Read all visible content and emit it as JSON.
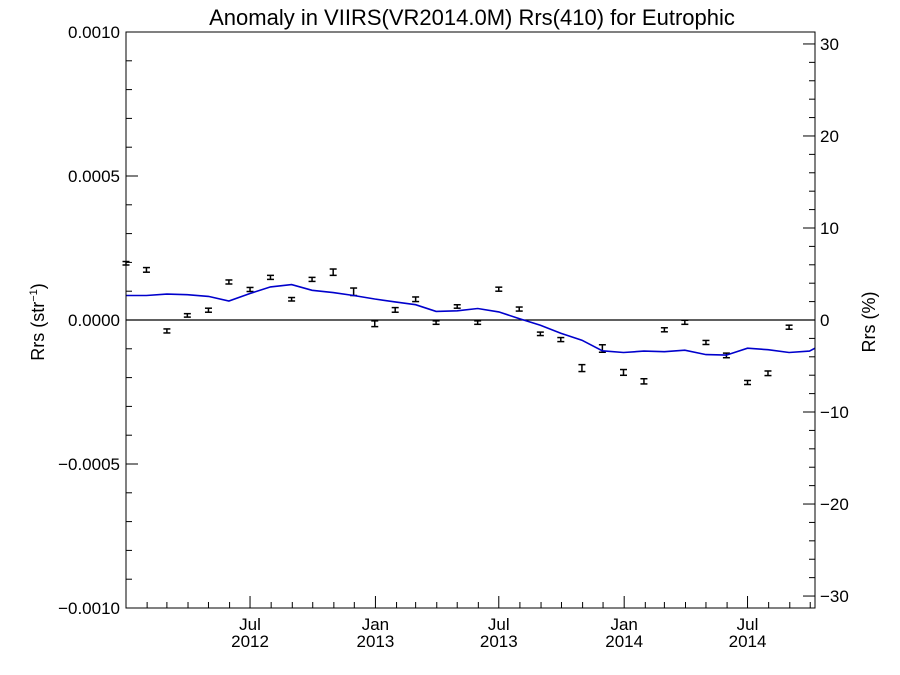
{
  "chart_data": {
    "type": "line",
    "title": "Anomaly in VIIRS(VR2014.0M) Rrs(410) for Eutrophic",
    "ylabel_base": "Rrs (str",
    "ylabel_sup": "−1",
    "ylabel_close": ")",
    "ylabel_right": "Rrs (%)",
    "ylim": [
      -0.001,
      0.001
    ],
    "ylim_right": [
      -31.3,
      31.3
    ],
    "xlim": [
      "2012-01-01",
      "2014-10-08"
    ],
    "zero_line": true,
    "left_ticks": [
      {
        "value": 0.001,
        "label": "0.0010"
      },
      {
        "value": 0.0005,
        "label": "0.0005"
      },
      {
        "value": 0.0,
        "label": "0.0000"
      },
      {
        "value": -0.0005,
        "label": "−0.0005"
      },
      {
        "value": -0.001,
        "label": "−0.0010"
      }
    ],
    "right_ticks": [
      {
        "value": 30,
        "label": "30"
      },
      {
        "value": 20,
        "label": "20"
      },
      {
        "value": 10,
        "label": "10"
      },
      {
        "value": 0,
        "label": "0"
      },
      {
        "value": -10,
        "label": "−10"
      },
      {
        "value": -20,
        "label": "−20"
      },
      {
        "value": -30,
        "label": "−30"
      }
    ],
    "x_ticks": [
      {
        "date": "2012-07-01",
        "month": "Jul",
        "year": "2012"
      },
      {
        "date": "2013-01-01",
        "month": "Jan",
        "year": "2013"
      },
      {
        "date": "2013-07-01",
        "month": "Jul",
        "year": "2013"
      },
      {
        "date": "2014-01-01",
        "month": "Jan",
        "year": "2014"
      },
      {
        "date": "2014-07-01",
        "month": "Jul",
        "year": "2014"
      }
    ],
    "series": [
      {
        "kind": "errorbar",
        "color": "#000000",
        "points": [
          {
            "x": "2012-01-01",
            "y": 0.000197,
            "err": 6e-06
          },
          {
            "x": "2012-01-31",
            "y": 0.000174,
            "err": 8e-06
          },
          {
            "x": "2012-03-01",
            "y": -3.8e-05,
            "err": 7e-06
          },
          {
            "x": "2012-03-31",
            "y": 1.6e-05,
            "err": 6e-06
          },
          {
            "x": "2012-05-01",
            "y": 3.4e-05,
            "err": 7e-06
          },
          {
            "x": "2012-05-31",
            "y": 0.000132,
            "err": 7e-06
          },
          {
            "x": "2012-07-01",
            "y": 0.000106,
            "err": 7e-06
          },
          {
            "x": "2012-07-31",
            "y": 0.000148,
            "err": 7e-06
          },
          {
            "x": "2012-08-31",
            "y": 7.2e-05,
            "err": 6e-06
          },
          {
            "x": "2012-09-30",
            "y": 0.000141,
            "err": 7e-06
          },
          {
            "x": "2012-10-31",
            "y": 0.000166,
            "err": 1.1e-05
          },
          {
            "x": "2012-11-30",
            "y": 9.8e-05,
            "err": 1.3e-05
          },
          {
            "x": "2012-12-31",
            "y": -1.3e-05,
            "err": 1e-05
          },
          {
            "x": "2013-01-30",
            "y": 3.5e-05,
            "err": 8e-06
          },
          {
            "x": "2013-03-01",
            "y": 7.2e-05,
            "err": 8e-06
          },
          {
            "x": "2013-03-31",
            "y": -9e-06,
            "err": 6e-06
          },
          {
            "x": "2013-05-01",
            "y": 4.7e-05,
            "err": 6e-06
          },
          {
            "x": "2013-05-31",
            "y": -9e-06,
            "err": 6e-06
          },
          {
            "x": "2013-07-01",
            "y": 0.000107,
            "err": 7e-06
          },
          {
            "x": "2013-07-31",
            "y": 3.8e-05,
            "err": 7e-06
          },
          {
            "x": "2013-08-31",
            "y": -4.8e-05,
            "err": 6e-06
          },
          {
            "x": "2013-09-30",
            "y": -6.8e-05,
            "err": 7e-06
          },
          {
            "x": "2013-10-31",
            "y": -0.000167,
            "err": 1.2e-05
          },
          {
            "x": "2013-11-30",
            "y": -9.9e-05,
            "err": 1.3e-05
          },
          {
            "x": "2013-12-31",
            "y": -0.000182,
            "err": 1e-05
          },
          {
            "x": "2014-01-30",
            "y": -0.000213,
            "err": 9e-06
          },
          {
            "x": "2014-03-01",
            "y": -3.4e-05,
            "err": 7e-06
          },
          {
            "x": "2014-03-31",
            "y": -8e-06,
            "err": 7e-06
          },
          {
            "x": "2014-05-01",
            "y": -7.8e-05,
            "err": 7e-06
          },
          {
            "x": "2014-05-31",
            "y": -0.000123,
            "err": 8e-06
          },
          {
            "x": "2014-07-01",
            "y": -0.000217,
            "err": 7e-06
          },
          {
            "x": "2014-07-31",
            "y": -0.000185,
            "err": 8e-06
          },
          {
            "x": "2014-08-31",
            "y": -2.5e-05,
            "err": 7e-06
          }
        ]
      },
      {
        "kind": "line",
        "color": "#0000cc",
        "points": [
          {
            "x": "2012-01-01",
            "y": 8.5e-05
          },
          {
            "x": "2012-01-31",
            "y": 8.5e-05
          },
          {
            "x": "2012-03-01",
            "y": 9e-05
          },
          {
            "x": "2012-03-31",
            "y": 8.8e-05
          },
          {
            "x": "2012-05-01",
            "y": 8.2e-05
          },
          {
            "x": "2012-05-31",
            "y": 6.6e-05
          },
          {
            "x": "2012-07-01",
            "y": 9.2e-05
          },
          {
            "x": "2012-07-31",
            "y": 0.000115
          },
          {
            "x": "2012-08-31",
            "y": 0.000123
          },
          {
            "x": "2012-09-30",
            "y": 0.000103
          },
          {
            "x": "2012-10-31",
            "y": 9.5e-05
          },
          {
            "x": "2012-11-30",
            "y": 8.5e-05
          },
          {
            "x": "2012-12-31",
            "y": 7.3e-05
          },
          {
            "x": "2013-01-30",
            "y": 6.3e-05
          },
          {
            "x": "2013-03-01",
            "y": 5.3e-05
          },
          {
            "x": "2013-03-31",
            "y": 3e-05
          },
          {
            "x": "2013-05-01",
            "y": 3.2e-05
          },
          {
            "x": "2013-05-31",
            "y": 4e-05
          },
          {
            "x": "2013-07-01",
            "y": 2.8e-05
          },
          {
            "x": "2013-07-31",
            "y": 5e-06
          },
          {
            "x": "2013-08-31",
            "y": -1.8e-05
          },
          {
            "x": "2013-09-30",
            "y": -4.6e-05
          },
          {
            "x": "2013-10-31",
            "y": -7e-05
          },
          {
            "x": "2013-11-30",
            "y": -0.000107
          },
          {
            "x": "2013-12-31",
            "y": -0.000113
          },
          {
            "x": "2014-01-30",
            "y": -0.000108
          },
          {
            "x": "2014-03-01",
            "y": -0.00011
          },
          {
            "x": "2014-03-31",
            "y": -0.000105
          },
          {
            "x": "2014-05-01",
            "y": -0.00012
          },
          {
            "x": "2014-05-31",
            "y": -0.000122
          },
          {
            "x": "2014-07-01",
            "y": -9.8e-05
          },
          {
            "x": "2014-07-31",
            "y": -0.000103
          },
          {
            "x": "2014-08-31",
            "y": -0.000113
          },
          {
            "x": "2014-09-30",
            "y": -0.000108
          },
          {
            "x": "2014-10-08",
            "y": -9.8e-05
          }
        ]
      }
    ]
  }
}
